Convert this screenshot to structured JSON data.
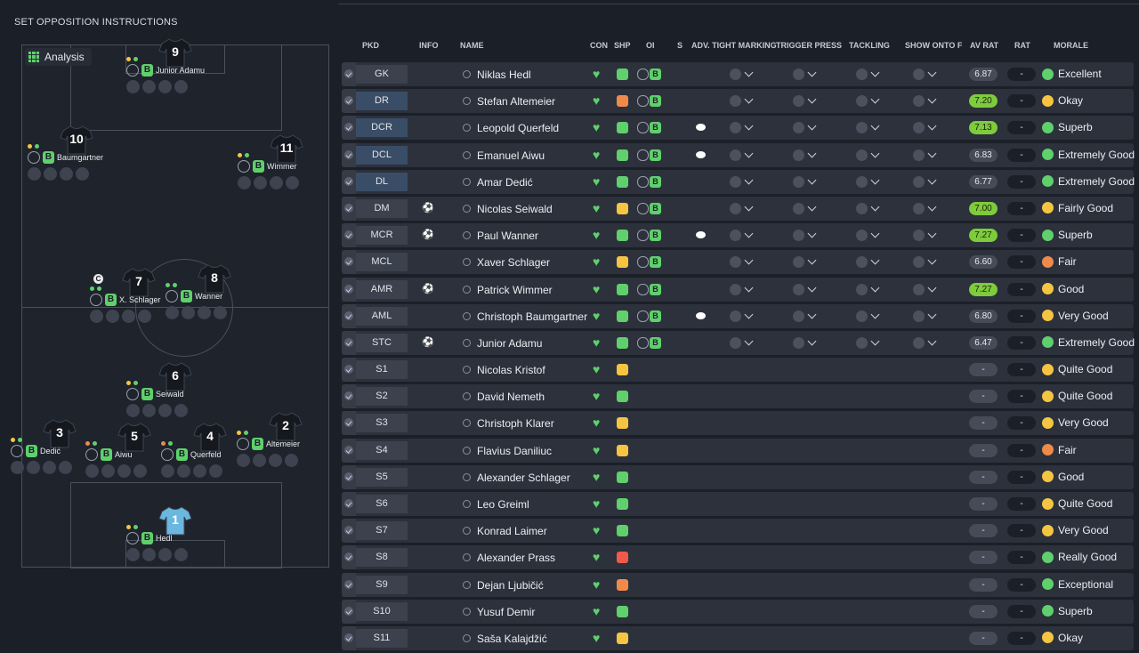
{
  "page_title": "SET OPPOSITION INSTRUCTIONS",
  "analysis_label": "Analysis",
  "headers": {
    "pkd": "PKD",
    "info": "INFO",
    "name": "NAME",
    "con": "CON",
    "shp": "SHP",
    "oi": "OI",
    "s": "S",
    "adv": "ADV. TIGHT MARKING",
    "trigger": "TRIGGER PRESS",
    "tackling": "TACKLING",
    "show": "SHOW ONTO F",
    "avrat": "AV RAT",
    "rat": "RAT",
    "morale": "MORALE"
  },
  "colors": {
    "green": "#5fd06c",
    "orange": "#f08a4b",
    "yellow": "#f5c542",
    "red": "#f05a4b",
    "rating_high": "#7ecb3c"
  },
  "pitch_players": [
    {
      "number": "9",
      "label": "Junior Adamu"
    },
    {
      "number": "10",
      "label": "Baumgartner"
    },
    {
      "number": "11",
      "label": "Wimmer"
    },
    {
      "number": "7",
      "label": "X. Schlager",
      "captain": "C"
    },
    {
      "number": "8",
      "label": "Wanner"
    },
    {
      "number": "6",
      "label": "Seiwald"
    },
    {
      "number": "3",
      "label": "Dedić"
    },
    {
      "number": "5",
      "label": "Aiwu"
    },
    {
      "number": "4",
      "label": "Querfeld"
    },
    {
      "number": "2",
      "label": "Altemeier"
    },
    {
      "number": "1",
      "label": "Hedl"
    }
  ],
  "rows": [
    {
      "pos": "GK",
      "name": "Niklas Hedl",
      "shp": "green",
      "oi": true,
      "bubble": false,
      "info": "",
      "av": "6.87",
      "hi": false,
      "rat": "-",
      "morale": "Excellent",
      "mc": "green"
    },
    {
      "pos": "DR",
      "name": "Stefan Altemeier",
      "shp": "orange",
      "oi": true,
      "bubble": false,
      "info": "",
      "av": "7.20",
      "hi": true,
      "rat": "-",
      "morale": "Okay",
      "mc": "yellow"
    },
    {
      "pos": "DCR",
      "name": "Leopold Querfeld",
      "shp": "green",
      "oi": true,
      "bubble": true,
      "info": "",
      "av": "7.13",
      "hi": true,
      "rat": "-",
      "morale": "Superb",
      "mc": "green"
    },
    {
      "pos": "DCL",
      "name": "Emanuel Aiwu",
      "shp": "green",
      "oi": true,
      "bubble": true,
      "info": "",
      "av": "6.83",
      "hi": false,
      "rat": "-",
      "morale": "Extremely Good",
      "mc": "green"
    },
    {
      "pos": "DL",
      "name": "Amar Dedić",
      "shp": "green",
      "oi": true,
      "bubble": false,
      "info": "",
      "av": "6.77",
      "hi": false,
      "rat": "-",
      "morale": "Extremely Good",
      "mc": "green"
    },
    {
      "pos": "DM",
      "name": "Nicolas Seiwald",
      "shp": "yellow",
      "oi": true,
      "bubble": false,
      "info": "⚽",
      "av": "7.00",
      "hi": true,
      "rat": "-",
      "morale": "Fairly Good",
      "mc": "yellow"
    },
    {
      "pos": "MCR",
      "name": "Paul Wanner",
      "shp": "green",
      "oi": true,
      "bubble": true,
      "info": "⚽",
      "av": "7.27",
      "hi": true,
      "rat": "-",
      "morale": "Superb",
      "mc": "green"
    },
    {
      "pos": "MCL",
      "name": "Xaver Schlager",
      "shp": "yellow",
      "oi": true,
      "bubble": false,
      "info": "",
      "av": "6.60",
      "hi": false,
      "rat": "-",
      "morale": "Fair",
      "mc": "orange"
    },
    {
      "pos": "AMR",
      "name": "Patrick Wimmer",
      "shp": "green",
      "oi": true,
      "bubble": false,
      "info": "⚽",
      "av": "7.27",
      "hi": true,
      "rat": "-",
      "morale": "Good",
      "mc": "yellow"
    },
    {
      "pos": "AML",
      "name": "Christoph Baumgartner",
      "shp": "green",
      "oi": true,
      "bubble": true,
      "info": "",
      "av": "6.80",
      "hi": false,
      "rat": "-",
      "morale": "Very Good",
      "mc": "yellow"
    },
    {
      "pos": "STC",
      "name": "Junior Adamu",
      "shp": "green",
      "oi": true,
      "bubble": false,
      "info": "⚽",
      "av": "6.47",
      "hi": false,
      "rat": "-",
      "morale": "Extremely Good",
      "mc": "green"
    },
    {
      "pos": "S1",
      "name": "Nicolas Kristof",
      "shp": "yellow",
      "oi": false,
      "bubble": false,
      "info": "",
      "av": "-",
      "hi": false,
      "rat": "-",
      "morale": "Quite Good",
      "mc": "yellow"
    },
    {
      "pos": "S2",
      "name": "David Nemeth",
      "shp": "green",
      "oi": false,
      "bubble": false,
      "info": "",
      "av": "-",
      "hi": false,
      "rat": "-",
      "morale": "Quite Good",
      "mc": "yellow"
    },
    {
      "pos": "S3",
      "name": "Christoph Klarer",
      "shp": "yellow",
      "oi": false,
      "bubble": false,
      "info": "",
      "av": "-",
      "hi": false,
      "rat": "-",
      "morale": "Very Good",
      "mc": "yellow"
    },
    {
      "pos": "S4",
      "name": "Flavius Daniliuc",
      "shp": "yellow",
      "oi": false,
      "bubble": false,
      "info": "",
      "av": "-",
      "hi": false,
      "rat": "-",
      "morale": "Fair",
      "mc": "orange"
    },
    {
      "pos": "S5",
      "name": "Alexander Schlager",
      "shp": "green",
      "oi": false,
      "bubble": false,
      "info": "",
      "av": "-",
      "hi": false,
      "rat": "-",
      "morale": "Good",
      "mc": "yellow"
    },
    {
      "pos": "S6",
      "name": "Leo Greiml",
      "shp": "green",
      "oi": false,
      "bubble": false,
      "info": "",
      "av": "-",
      "hi": false,
      "rat": "-",
      "morale": "Quite Good",
      "mc": "yellow"
    },
    {
      "pos": "S7",
      "name": "Konrad Laimer",
      "shp": "green",
      "oi": false,
      "bubble": false,
      "info": "",
      "av": "-",
      "hi": false,
      "rat": "-",
      "morale": "Very Good",
      "mc": "yellow"
    },
    {
      "pos": "S8",
      "name": "Alexander Prass",
      "shp": "red",
      "oi": false,
      "bubble": false,
      "info": "",
      "av": "-",
      "hi": false,
      "rat": "-",
      "morale": "Really Good",
      "mc": "green"
    },
    {
      "pos": "S9",
      "name": "Dejan Ljubičić",
      "shp": "orange",
      "oi": false,
      "bubble": false,
      "info": "",
      "av": "-",
      "hi": false,
      "rat": "-",
      "morale": "Exceptional",
      "mc": "green"
    },
    {
      "pos": "S10",
      "name": "Yusuf Demir",
      "shp": "green",
      "oi": false,
      "bubble": false,
      "info": "",
      "av": "-",
      "hi": false,
      "rat": "-",
      "morale": "Superb",
      "mc": "green"
    },
    {
      "pos": "S11",
      "name": "Saša Kalajdžić",
      "shp": "yellow",
      "oi": false,
      "bubble": false,
      "info": "",
      "av": "-",
      "hi": false,
      "rat": "-",
      "morale": "Okay",
      "mc": "yellow"
    }
  ]
}
